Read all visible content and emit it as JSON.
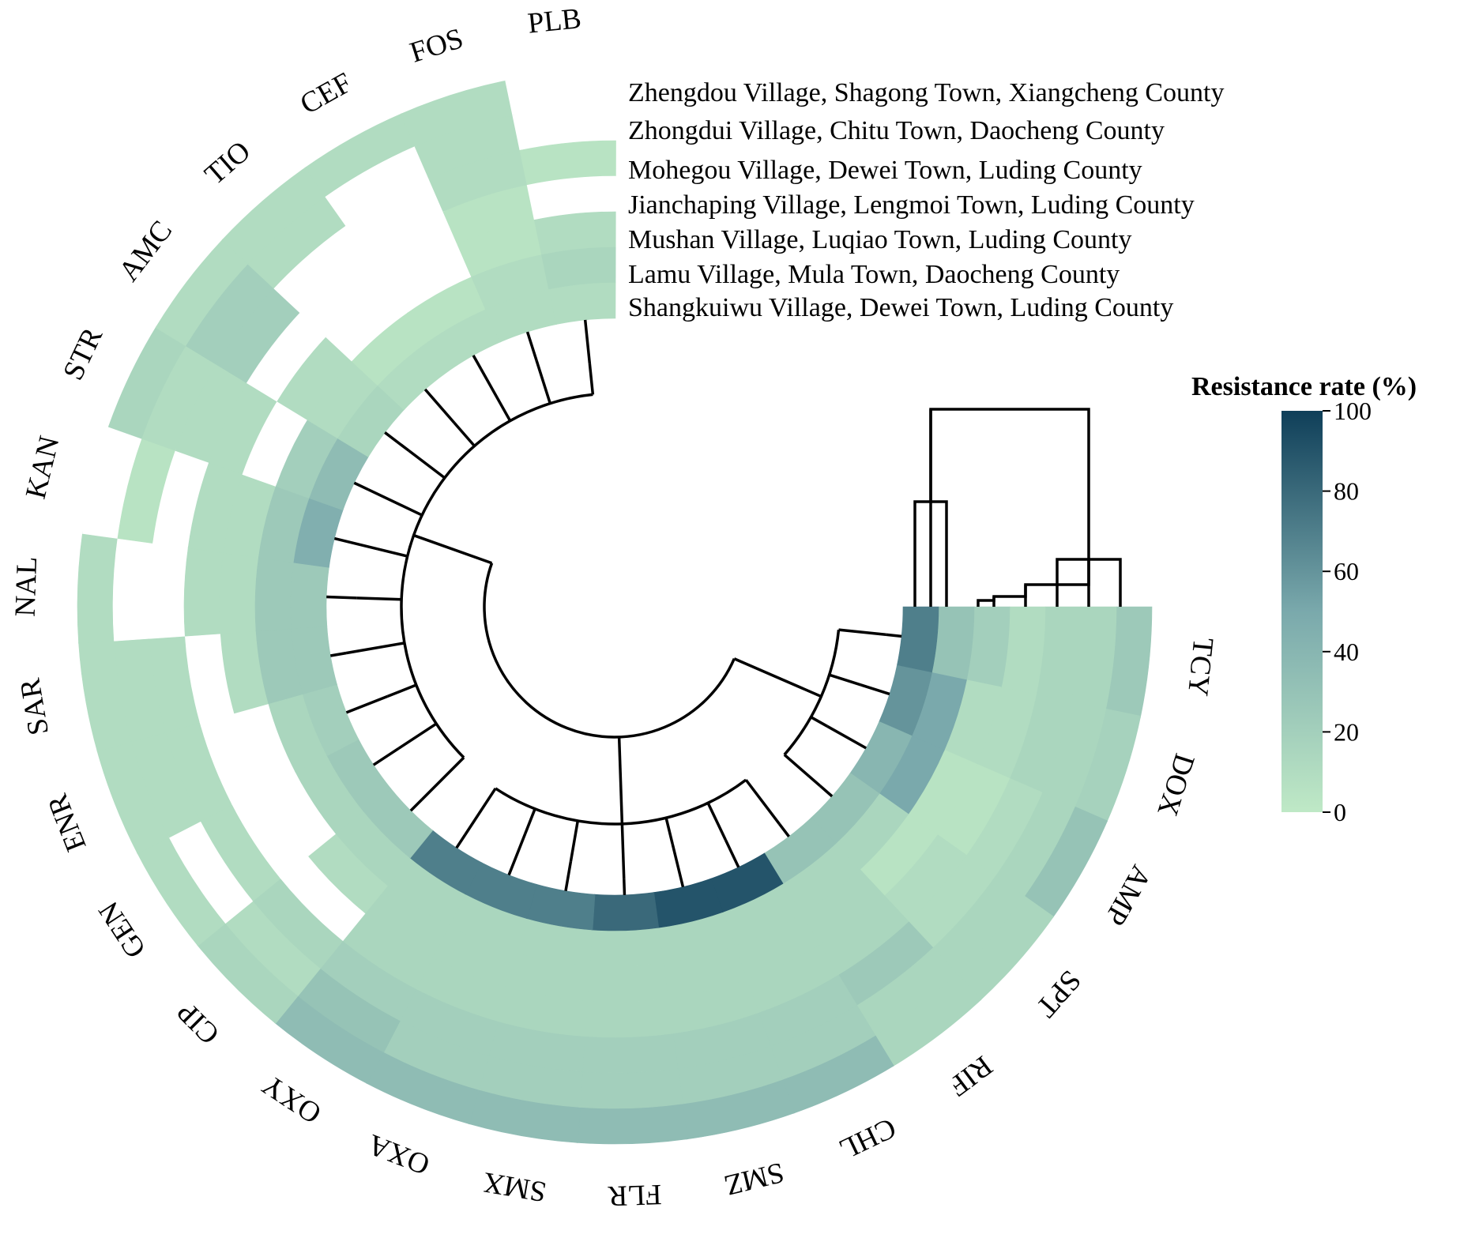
{
  "chart_data": {
    "type": "heatmap",
    "layout": "circular",
    "antibiotics": [
      "TCY",
      "DOX",
      "AMP",
      "SPT",
      "RIF",
      "CHL",
      "SMZ",
      "FLR",
      "SMX",
      "OXA",
      "OXY",
      "CIP",
      "GEN",
      "ENR",
      "SAR",
      "NAL",
      "KAN",
      "STR",
      "AMC",
      "TIO",
      "CEF",
      "FOS",
      "PLB"
    ],
    "villages_outer_to_inner": [
      "Zhengdou Village, Shagong Town, Xiangcheng County",
      "Zhongdui Village, Chitu Town, Daocheng County",
      "Mohegou Village, Dewei Town, Luding County",
      "Jianchaping Village, Lengmoi Town, Luding County",
      "Mushan Village, Luqiao Town, Luding County",
      "Lamu Village, Mula Town, Daocheng County",
      "Shangkuiwu Village, Dewei Town, Luding County"
    ],
    "values": [
      [
        25,
        18,
        30,
        15,
        15,
        35,
        35,
        35,
        35,
        35,
        35,
        15,
        10,
        10,
        10,
        10,
        0,
        15,
        10,
        10,
        10,
        10,
        0
      ],
      [
        15,
        15,
        15,
        15,
        15,
        20,
        20,
        20,
        20,
        20,
        30,
        10,
        0,
        10,
        10,
        0,
        5,
        10,
        20,
        10,
        0,
        10,
        0
      ],
      [
        15,
        15,
        10,
        10,
        25,
        20,
        20,
        20,
        20,
        20,
        20,
        15,
        10,
        10,
        10,
        0,
        0,
        10,
        20,
        0,
        0,
        10,
        5
      ],
      [
        10,
        10,
        5,
        10,
        15,
        15,
        15,
        15,
        15,
        15,
        15,
        0,
        0,
        0,
        0,
        10,
        10,
        10,
        0,
        0,
        0,
        5,
        null
      ],
      [
        20,
        10,
        5,
        5,
        15,
        15,
        15,
        15,
        15,
        15,
        15,
        10,
        0,
        0,
        10,
        10,
        10,
        0,
        10,
        0,
        0,
        5,
        10
      ],
      [
        30,
        50,
        50,
        15,
        15,
        15,
        15,
        15,
        15,
        15,
        15,
        15,
        15,
        15,
        25,
        25,
        25,
        20,
        10,
        5,
        5,
        10,
        15
      ],
      [
        70,
        60,
        40,
        30,
        30,
        90,
        90,
        80,
        70,
        70,
        70,
        25,
        25,
        20,
        25,
        25,
        45,
        35,
        15,
        10,
        10,
        10,
        10
      ]
    ],
    "colorbar": {
      "title": "Resistance rate (%)",
      "min": 0,
      "max": 100,
      "ticks": [
        0,
        20,
        40,
        60,
        80,
        100
      ]
    },
    "colors": {
      "low": "#bfe9c6",
      "mid": "#7aa9ac",
      "high": "#0f3f59",
      "empty": "#ffffff"
    }
  }
}
